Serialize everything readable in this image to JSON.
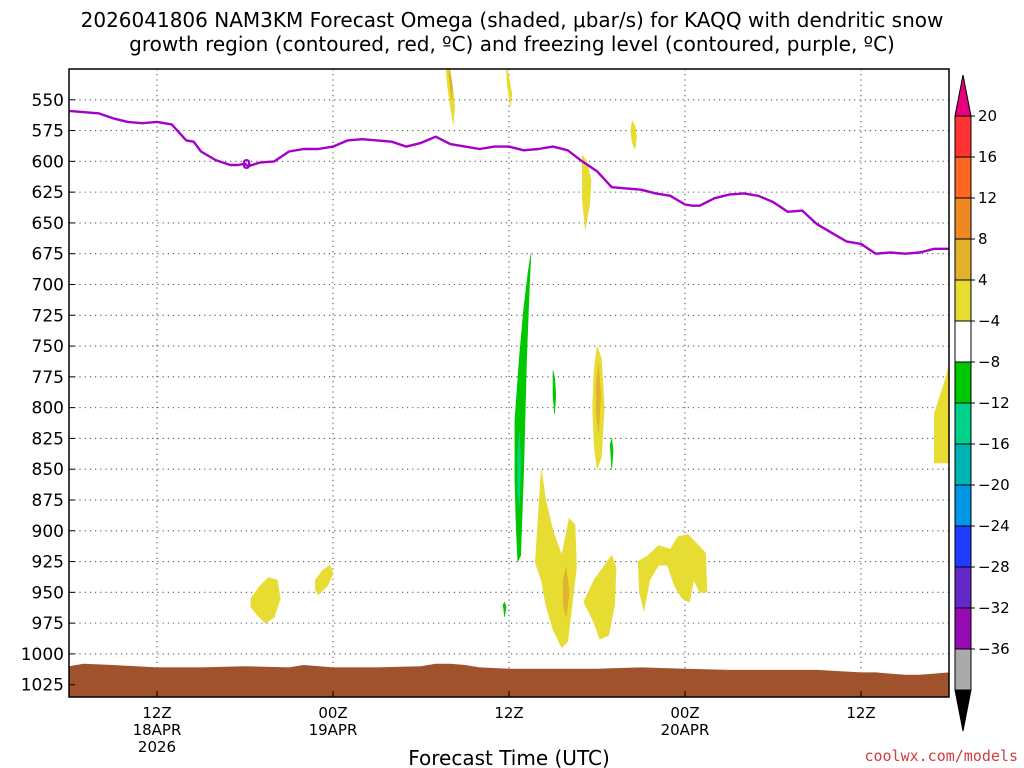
{
  "title": {
    "line1": "2026041806 NAM3KM Forecast Omega (shaded, μbar/s) for KAQQ with dendritic snow",
    "line2": "growth region (contoured, red, ºC) and freezing level (contoured, purple, ºC)"
  },
  "credit": "coolwx.com/models",
  "chart_data": {
    "type": "heatmap",
    "title": "2026041806 NAM3KM Forecast Omega (shaded, μbar/s) for KAQQ with dendritic snow growth region (contoured, red, ºC) and freezing level (contoured, purple, ºC)",
    "xlabel": "Forecast Time (UTC)",
    "ylabel": "",
    "x_unit": "hours since 2026-04-18 06Z",
    "xlim": [
      0,
      60
    ],
    "ylim": [
      1035,
      525
    ],
    "y_scale": "linear-pressure-inverted",
    "y_ticks": [
      550,
      575,
      600,
      625,
      650,
      675,
      700,
      725,
      750,
      775,
      800,
      825,
      850,
      875,
      900,
      925,
      950,
      975,
      1000,
      1025
    ],
    "x_ticks": [
      {
        "x": 6,
        "line1": "12Z",
        "line2": "18APR",
        "line3": "2026"
      },
      {
        "x": 18,
        "line1": "00Z",
        "line2": "19APR",
        "line3": ""
      },
      {
        "x": 30,
        "line1": "12Z",
        "line2": "",
        "line3": ""
      },
      {
        "x": 42,
        "line1": "00Z",
        "line2": "20APR",
        "line3": ""
      },
      {
        "x": 54,
        "line1": "12Z",
        "line2": "",
        "line3": ""
      }
    ],
    "grid": true,
    "colorbar": {
      "labels": [
        "20",
        "16",
        "12",
        "8",
        "4",
        "−4",
        "−8",
        "−12",
        "−16",
        "−20",
        "−24",
        "−28",
        "−32",
        "−36"
      ],
      "colors": [
        "#e6007e",
        "#ff3333",
        "#ff6622",
        "#ee8822",
        "#e2b22c",
        "#e6dc32",
        "#ffffff",
        "#00c800",
        "#00d28c",
        "#00b4b4",
        "#0096e6",
        "#1e3cff",
        "#6428c8",
        "#960ab4",
        "#aaaaaa",
        "#000000"
      ]
    },
    "freezing_level": {
      "color": "#a500c8",
      "x": [
        0,
        2,
        3,
        4,
        5,
        6,
        7,
        8,
        8.5,
        9,
        10,
        11,
        11.5,
        12,
        12.2,
        13,
        14,
        15,
        16,
        17,
        18,
        19,
        20,
        21,
        22,
        23,
        24,
        25,
        26,
        27,
        28,
        29,
        30,
        31,
        32,
        33,
        34,
        35,
        36,
        37,
        38,
        39,
        40,
        41,
        42,
        42.5,
        43,
        44,
        45,
        46,
        47,
        48,
        49,
        50,
        51,
        52,
        53,
        54,
        55,
        56,
        57,
        58,
        59,
        60
      ],
      "y": [
        559,
        561,
        565,
        568,
        569,
        568,
        570,
        583,
        584,
        592,
        599,
        603,
        603,
        602,
        604,
        601,
        600,
        592,
        590,
        590,
        588,
        583,
        582,
        583,
        584,
        588,
        585,
        580,
        586,
        588,
        590,
        588,
        588,
        591,
        590,
        588,
        591,
        600,
        608,
        621,
        622,
        623,
        626,
        628,
        635,
        636,
        636,
        630,
        627,
        626,
        628,
        633,
        641,
        640,
        651,
        658,
        665,
        667,
        675,
        674,
        675,
        674,
        671,
        671
      ]
    },
    "freezing_level_label": {
      "x": 12.1,
      "y": 602,
      "text": "0"
    },
    "ground": {
      "color": "#a0522d",
      "x": [
        0,
        1,
        3,
        6,
        9,
        12,
        15,
        16,
        18,
        21,
        24,
        25,
        26,
        27,
        28,
        30,
        33,
        36,
        39,
        42,
        45,
        48,
        51,
        54,
        55,
        56,
        57,
        58,
        59,
        60
      ],
      "y": [
        1010,
        1008,
        1009,
        1011,
        1011,
        1010,
        1011,
        1009,
        1011,
        1011,
        1010,
        1008,
        1008,
        1009,
        1011,
        1012,
        1012,
        1012,
        1011,
        1012,
        1013,
        1013,
        1013,
        1015,
        1015,
        1016,
        1017,
        1017,
        1016,
        1015
      ]
    },
    "omega_regions": [
      {
        "level": 4,
        "color": "#e6dc32",
        "x": [
          25.9,
          26.1,
          26.3,
          26.2,
          26.0,
          25.8,
          25.7
        ],
        "y": [
          522,
          535,
          555,
          570,
          555,
          538,
          522
        ]
      },
      {
        "level": 8,
        "color": "#e2b22c",
        "x": [
          25.95,
          26.05,
          26.15,
          26.1,
          26.0,
          25.9
        ],
        "y": [
          525,
          532,
          540,
          550,
          540,
          530
        ]
      },
      {
        "level": 4,
        "color": "#e6dc32",
        "x": [
          29.8,
          30.0,
          30.2,
          30.1,
          29.9
        ],
        "y": [
          522,
          532,
          545,
          555,
          540
        ]
      },
      {
        "level": 4,
        "color": "#e6dc32",
        "x": [
          38.4,
          38.6,
          38.7,
          38.6,
          38.4,
          38.3
        ],
        "y": [
          567,
          572,
          580,
          590,
          585,
          575
        ]
      },
      {
        "level": 4,
        "color": "#e6dc32",
        "x": [
          35.0,
          35.3,
          35.6,
          35.5,
          35.2,
          35.0
        ],
        "y": [
          595,
          600,
          615,
          635,
          655,
          630
        ]
      },
      {
        "level": -4,
        "color": "#00c800",
        "x": [
          30.4,
          30.7,
          31.0,
          31.3,
          31.5,
          31.4,
          31.2,
          31.0,
          30.8,
          30.6,
          30.5,
          30.4
        ],
        "y": [
          810,
          760,
          720,
          690,
          675,
          700,
          760,
          850,
          920,
          925,
          900,
          860
        ]
      },
      {
        "level": -8,
        "color": "#00d28c",
        "x": [
          30.6,
          30.7,
          30.8,
          30.7,
          30.6
        ],
        "y": [
          840,
          820,
          845,
          880,
          870
        ]
      },
      {
        "level": -4,
        "color": "#00c800",
        "x": [
          33.0,
          33.1,
          33.2,
          33.1,
          33.0
        ],
        "y": [
          770,
          775,
          790,
          805,
          790
        ]
      },
      {
        "level": -4,
        "color": "#00c800",
        "x": [
          36.9,
          37.0,
          37.1,
          37.0
        ],
        "y": [
          830,
          825,
          835,
          850
        ]
      },
      {
        "level": -4,
        "color": "#00c800",
        "x": [
          29.6,
          29.7,
          29.8,
          29.7
        ],
        "y": [
          960,
          958,
          962,
          970
        ]
      },
      {
        "level": 4,
        "color": "#e6dc32",
        "x": [
          35.8,
          36.0,
          36.3,
          36.5,
          36.3,
          36.0,
          35.8,
          35.7
        ],
        "y": [
          770,
          750,
          760,
          800,
          840,
          850,
          830,
          800
        ]
      },
      {
        "level": 8,
        "color": "#e2b22c",
        "x": [
          35.95,
          36.1,
          36.25,
          36.1,
          35.95
        ],
        "y": [
          780,
          765,
          790,
          820,
          805
        ]
      },
      {
        "level": 4,
        "color": "#e6dc32",
        "x": [
          31.8,
          32.2,
          32.5,
          33.0,
          33.6,
          34.1,
          34.5,
          34.6,
          34.3,
          34.0,
          33.6,
          33.0,
          32.5,
          32.2,
          31.9
        ],
        "y": [
          925,
          850,
          875,
          900,
          920,
          890,
          895,
          930,
          960,
          990,
          995,
          980,
          960,
          940,
          930
        ]
      },
      {
        "level": 8,
        "color": "#e2b22c",
        "x": [
          33.7,
          33.9,
          34.1,
          33.9,
          33.7
        ],
        "y": [
          940,
          930,
          950,
          970,
          960
        ]
      },
      {
        "level": 4,
        "color": "#e6dc32",
        "x": [
          35.2,
          35.8,
          36.4,
          37.0,
          37.3,
          37.2,
          36.8,
          36.2,
          35.8,
          35.4,
          35.1
        ],
        "y": [
          955,
          940,
          930,
          920,
          930,
          960,
          985,
          988,
          975,
          965,
          958
        ]
      },
      {
        "level": 4,
        "color": "#e6dc32",
        "x": [
          38.8,
          39.5,
          40.2,
          41.0,
          41.5,
          42.2,
          43.0,
          43.4,
          43.5,
          43.0,
          42.6,
          42.3,
          41.8,
          41.3,
          40.8,
          40.2,
          39.6,
          39.2,
          38.9
        ],
        "y": [
          925,
          920,
          912,
          915,
          905,
          903,
          913,
          918,
          950,
          950,
          940,
          958,
          955,
          945,
          928,
          928,
          940,
          965,
          950
        ]
      },
      {
        "level": 4,
        "color": "#e6dc32",
        "x": [
          12.4,
          13.0,
          13.6,
          14.2,
          14.4,
          14.0,
          13.4,
          12.8,
          12.4
        ],
        "y": [
          955,
          945,
          938,
          940,
          955,
          970,
          975,
          968,
          962
        ]
      },
      {
        "level": 4,
        "color": "#e6dc32",
        "x": [
          16.8,
          17.3,
          17.8,
          18.0,
          17.6,
          17.0,
          16.8
        ],
        "y": [
          940,
          932,
          928,
          935,
          945,
          952,
          948
        ]
      },
      {
        "level": 4,
        "color": "#e6dc32",
        "x": [
          59.0,
          59.4,
          59.8,
          60.0,
          60.0,
          59.0
        ],
        "y": [
          805,
          790,
          775,
          765,
          845,
          845
        ]
      }
    ]
  }
}
